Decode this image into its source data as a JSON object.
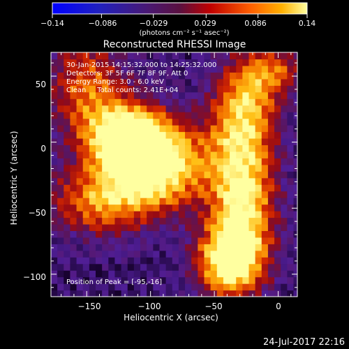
{
  "colorbar": {
    "tick_labels": [
      "−0.14",
      "−0.086",
      "−0.029",
      "0.029",
      "0.086",
      "0.14"
    ],
    "ticks": [
      -0.14,
      -0.086,
      -0.029,
      0.029,
      0.086,
      0.14
    ],
    "range": [
      -0.14,
      0.14
    ],
    "units_label": "(photons cm⁻² s⁻¹ asec⁻²)"
  },
  "chart_data": {
    "type": "heatmap",
    "title": "Reconstructed RHESSI Image",
    "xlabel": "Heliocentric X (arcsec)",
    "ylabel": "Heliocentric Y (arcsec)",
    "xlim": [
      -178,
      15
    ],
    "ylim": [
      -117,
      68
    ],
    "x_ticks": [
      -150,
      -100,
      -50,
      0
    ],
    "y_ticks": [
      50,
      0,
      -50,
      -100
    ],
    "x_tick_labels": [
      "−150",
      "−100",
      "−50",
      "0"
    ],
    "y_tick_labels": [
      "50",
      "0",
      "−50",
      "−100"
    ],
    "colormap": "hot",
    "value_range": [
      -0.14,
      0.14
    ],
    "peak": [
      -95,
      -16
    ],
    "sources": [
      {
        "x": -95,
        "y": -16,
        "amp": 1.0,
        "sx": 28,
        "sy": 22
      },
      {
        "x": -118,
        "y": 4,
        "amp": 0.85,
        "sx": 22,
        "sy": 18
      },
      {
        "x": -150,
        "y": 42,
        "amp": 0.55,
        "sx": 22,
        "sy": 28
      },
      {
        "x": -140,
        "y": -45,
        "amp": 0.6,
        "sx": 30,
        "sy": 18
      },
      {
        "x": -28,
        "y": -45,
        "amp": 0.9,
        "sx": 18,
        "sy": 40
      },
      {
        "x": -40,
        "y": -90,
        "amp": 0.8,
        "sx": 18,
        "sy": 18
      },
      {
        "x": -28,
        "y": 25,
        "amp": 0.6,
        "sx": 18,
        "sy": 25
      },
      {
        "x": -5,
        "y": 55,
        "amp": 0.5,
        "sx": 18,
        "sy": 15
      }
    ],
    "annotations": [
      "30-Jan-2015 14:15:32.000 to 14:25:32.000",
      "Detectors: 3F 5F 6F 7F 8F 9F, Att 0",
      "Energy Range: 3.0 - 6.0 keV",
      "Clean     Total counts: 2.41E+04"
    ],
    "peak_label": "Position of Peak = [-95,-16]"
  },
  "footer": {
    "timestamp": "24-Jul-2017 22:16"
  }
}
